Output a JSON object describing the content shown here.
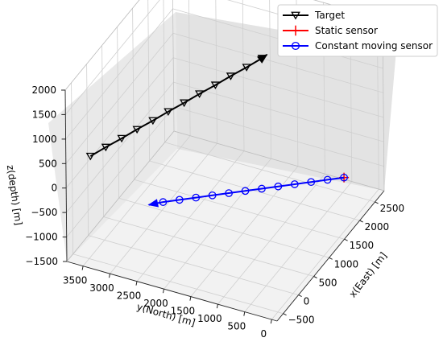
{
  "chart_data": {
    "type": "line",
    "projection": "3d",
    "xlabel": "x(East) [m]",
    "ylabel": "y(North) [m]",
    "zlabel": "z(depth) [m]",
    "x_ticks": [
      "−500",
      "0",
      "500",
      "1000",
      "1500",
      "2000",
      "2500"
    ],
    "y_ticks": [
      "0",
      "500",
      "1000",
      "1500",
      "2000",
      "2500",
      "3000",
      "3500"
    ],
    "z_ticks": [
      "−1500",
      "−1000",
      "−500",
      "0",
      "500",
      "1000",
      "1500",
      "2000"
    ],
    "legend_position": "top-right",
    "grid": true,
    "series": [
      {
        "name": "Target",
        "color": "#000000",
        "marker": "triangle-down-open",
        "arrow_end": true,
        "x": [
          -600,
          -310,
          -20,
          270,
          560,
          850,
          1140,
          1430,
          1720,
          2010,
          2300,
          2590,
          2700
        ],
        "y": [
          3400,
          3280,
          3150,
          3030,
          2900,
          2780,
          2650,
          2530,
          2400,
          2280,
          2150,
          2030,
          2000
        ],
        "z": [
          700,
          700,
          700,
          700,
          700,
          700,
          700,
          700,
          700,
          700,
          700,
          700,
          700
        ]
      },
      {
        "name": "Static sensor",
        "color": "#ff0000",
        "marker": "plus",
        "x": [
          2200
        ],
        "y": [
          300
        ],
        "z": [
          -900
        ]
      },
      {
        "name": "Constant moving sensor",
        "color": "#0000ff",
        "marker": "circle-open",
        "arrow_end": true,
        "x": [
          2200,
          2050,
          1900,
          1750,
          1600,
          1450,
          1300,
          1150,
          1000,
          850,
          700,
          550,
          400
        ],
        "y": [
          300,
          520,
          740,
          960,
          1180,
          1400,
          1620,
          1840,
          2060,
          2280,
          2500,
          2720,
          2900
        ],
        "z": [
          -900,
          -900,
          -900,
          -900,
          -900,
          -900,
          -900,
          -900,
          -900,
          -900,
          -900,
          -900,
          -900
        ]
      }
    ]
  }
}
